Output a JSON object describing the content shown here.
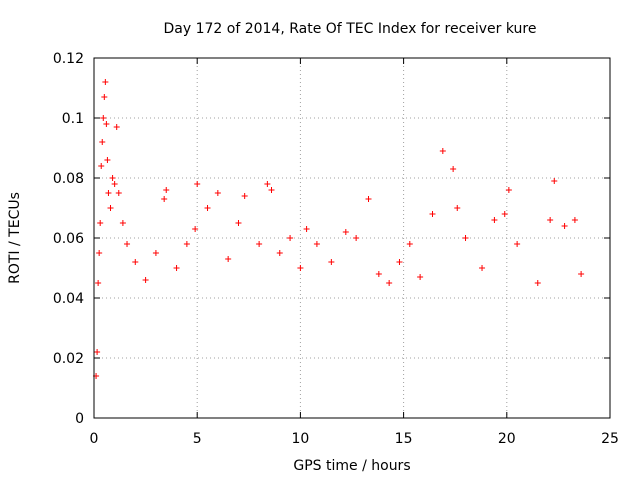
{
  "chart_data": {
    "type": "scatter",
    "title": "Day 172 of 2014, Rate Of TEC Index for receiver kure",
    "xlabel": "GPS time / hours",
    "ylabel": "ROTI / TECUs",
    "xlim": [
      0,
      25
    ],
    "ylim": [
      0,
      0.12
    ],
    "xticks": [
      0,
      5,
      10,
      15,
      20,
      25
    ],
    "yticks": [
      0,
      0.02,
      0.04,
      0.06,
      0.08,
      0.1,
      0.12
    ],
    "xtick_labels": [
      "0",
      "5",
      "10",
      "15",
      "20",
      "25"
    ],
    "ytick_labels": [
      "0",
      "0.02",
      "0.04",
      "0.06",
      "0.08",
      "0.1",
      "0.12"
    ],
    "grid": true,
    "marker": "+",
    "color": "#ff0000",
    "series": [
      {
        "name": "ROTI",
        "points": [
          [
            0.1,
            0.014
          ],
          [
            0.15,
            0.022
          ],
          [
            0.2,
            0.045
          ],
          [
            0.25,
            0.055
          ],
          [
            0.3,
            0.065
          ],
          [
            0.35,
            0.084
          ],
          [
            0.4,
            0.092
          ],
          [
            0.45,
            0.1
          ],
          [
            0.5,
            0.107
          ],
          [
            0.55,
            0.112
          ],
          [
            0.6,
            0.098
          ],
          [
            0.65,
            0.086
          ],
          [
            0.7,
            0.075
          ],
          [
            0.8,
            0.07
          ],
          [
            0.9,
            0.08
          ],
          [
            1.0,
            0.078
          ],
          [
            1.1,
            0.097
          ],
          [
            1.2,
            0.075
          ],
          [
            1.4,
            0.065
          ],
          [
            1.6,
            0.058
          ],
          [
            2.0,
            0.052
          ],
          [
            2.5,
            0.046
          ],
          [
            3.0,
            0.055
          ],
          [
            3.4,
            0.073
          ],
          [
            3.5,
            0.076
          ],
          [
            4.0,
            0.05
          ],
          [
            4.5,
            0.058
          ],
          [
            4.9,
            0.063
          ],
          [
            5.0,
            0.078
          ],
          [
            5.5,
            0.07
          ],
          [
            6.0,
            0.075
          ],
          [
            6.5,
            0.053
          ],
          [
            7.0,
            0.065
          ],
          [
            7.3,
            0.074
          ],
          [
            8.0,
            0.058
          ],
          [
            8.4,
            0.078
          ],
          [
            8.6,
            0.076
          ],
          [
            9.0,
            0.055
          ],
          [
            9.5,
            0.06
          ],
          [
            10.0,
            0.05
          ],
          [
            10.3,
            0.063
          ],
          [
            10.8,
            0.058
          ],
          [
            11.5,
            0.052
          ],
          [
            12.2,
            0.062
          ],
          [
            12.7,
            0.06
          ],
          [
            13.3,
            0.073
          ],
          [
            13.8,
            0.048
          ],
          [
            14.3,
            0.045
          ],
          [
            14.8,
            0.052
          ],
          [
            15.3,
            0.058
          ],
          [
            15.8,
            0.047
          ],
          [
            16.4,
            0.068
          ],
          [
            16.9,
            0.089
          ],
          [
            17.4,
            0.083
          ],
          [
            17.6,
            0.07
          ],
          [
            18.0,
            0.06
          ],
          [
            18.8,
            0.05
          ],
          [
            19.4,
            0.066
          ],
          [
            19.9,
            0.068
          ],
          [
            20.1,
            0.076
          ],
          [
            20.5,
            0.058
          ],
          [
            21.5,
            0.045
          ],
          [
            22.1,
            0.066
          ],
          [
            22.3,
            0.079
          ],
          [
            22.8,
            0.064
          ],
          [
            23.3,
            0.066
          ],
          [
            23.6,
            0.048
          ]
        ]
      }
    ]
  }
}
